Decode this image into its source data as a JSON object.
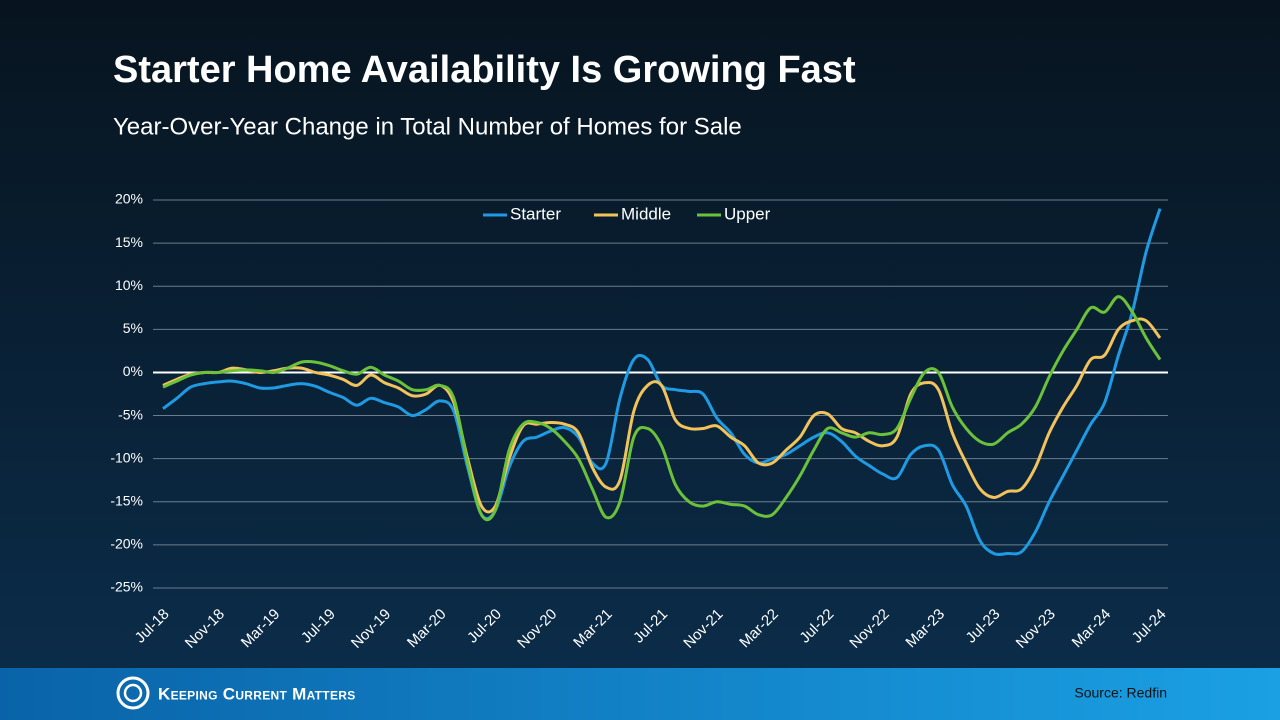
{
  "chart_data": {
    "type": "line",
    "title": "Starter Home Availability Is Growing Fast",
    "subtitle": "Year-Over-Year Change in Total Number of Homes for Sale",
    "categories": [
      "Jul-18",
      null,
      null,
      null,
      "Nov-18",
      null,
      null,
      null,
      "Mar-19",
      null,
      null,
      null,
      "Jul-19",
      null,
      null,
      null,
      "Nov-19",
      null,
      null,
      null,
      "Mar-20",
      null,
      null,
      null,
      "Jul-20",
      null,
      null,
      null,
      "Nov-20",
      null,
      null,
      null,
      "Mar-21",
      null,
      null,
      null,
      "Jul-21",
      null,
      null,
      null,
      "Nov-21",
      null,
      null,
      null,
      "Mar-22",
      null,
      null,
      null,
      "Jul-22",
      null,
      null,
      null,
      "Nov-22",
      null,
      null,
      null,
      "Mar-23",
      null,
      null,
      null,
      "Jul-23",
      null,
      null,
      null,
      "Nov-23",
      null,
      null,
      null,
      "Mar-24",
      null,
      null,
      null,
      "Jul-24"
    ],
    "series": [
      {
        "name": "Starter",
        "color": "#1f9be3",
        "values": [
          -4.2,
          -3,
          -1.7,
          -1.3,
          -1.1,
          -1.0,
          -1.3,
          -1.8,
          -1.8,
          -1.5,
          -1.3,
          -1.6,
          -2.3,
          -2.9,
          -3.8,
          -3.0,
          -3.5,
          -4.0,
          -5,
          -4.3,
          -3.3,
          -4.5,
          -11,
          -16.5,
          -16,
          -11,
          -8,
          -7.5,
          -6.8,
          -6.4,
          -7.5,
          -10.5,
          -10.5,
          -3,
          1.5,
          1.5,
          -1.5,
          -2.0,
          -2.2,
          -2.5,
          -5.3,
          -7,
          -9.5,
          -10.5,
          -10,
          -9.5,
          -8.5,
          -7.5,
          -7,
          -8,
          -9.7,
          -10.8,
          -11.8,
          -12.2,
          -9.5,
          -8.5,
          -9.0,
          -13,
          -15.5,
          -19.5,
          -21,
          -21,
          -20.8,
          -18.5,
          -15,
          -12,
          -9,
          -6,
          -3.5,
          2,
          7,
          14,
          19
        ]
      },
      {
        "name": "Middle",
        "color": "#f2c35b",
        "values": [
          -1.5,
          -0.8,
          -0.2,
          0,
          0,
          0.5,
          0.3,
          0,
          0.2,
          0.5,
          0.5,
          0,
          -0.3,
          -0.8,
          -1.5,
          -0.3,
          -1.2,
          -1.8,
          -2.7,
          -2.5,
          -1.5,
          -3.5,
          -10,
          -15.5,
          -15.5,
          -10,
          -6.2,
          -6,
          -5.8,
          -6,
          -7,
          -11,
          -13.3,
          -12.5,
          -4.5,
          -1.5,
          -1.5,
          -5.5,
          -6.5,
          -6.5,
          -6.2,
          -7.5,
          -8.5,
          -10.5,
          -10.5,
          -9,
          -7.5,
          -5,
          -4.8,
          -6.5,
          -7,
          -8,
          -8.5,
          -7.5,
          -2.5,
          -1.2,
          -2,
          -7,
          -10.5,
          -13.5,
          -14.5,
          -13.8,
          -13.5,
          -11,
          -7,
          -4,
          -1.5,
          1.5,
          2,
          5,
          6,
          6,
          4
        ]
      },
      {
        "name": "Upper",
        "color": "#6cc13a",
        "values": [
          -1.7,
          -1,
          -0.3,
          0,
          0,
          0.2,
          0.3,
          0.2,
          0,
          0.5,
          1.2,
          1.2,
          0.8,
          0.2,
          -0.2,
          0.6,
          -0.3,
          -1,
          -2,
          -2,
          -1.5,
          -3,
          -10.5,
          -16.5,
          -16,
          -9,
          -6,
          -5.8,
          -6.5,
          -8,
          -10,
          -13.5,
          -16.8,
          -15,
          -7.5,
          -6.5,
          -8.5,
          -13,
          -15,
          -15.5,
          -15,
          -15.3,
          -15.5,
          -16.5,
          -16.5,
          -14.5,
          -12,
          -9,
          -6.5,
          -7,
          -7.5,
          -7,
          -7.2,
          -6.5,
          -3,
          0,
          0,
          -4,
          -6.5,
          -8,
          -8.3,
          -7,
          -6,
          -4,
          -0.5,
          2.5,
          5,
          7.5,
          7,
          8.8,
          7,
          4,
          1.5
        ]
      }
    ],
    "ylim": [
      -25,
      20
    ],
    "yticks": [
      {
        "value": -25,
        "label": "-25%"
      },
      {
        "value": -20,
        "label": "-20%"
      },
      {
        "value": -15,
        "label": "-15%"
      },
      {
        "value": -10,
        "label": "-10%"
      },
      {
        "value": -5,
        "label": "-5%"
      },
      {
        "value": 0,
        "label": "0%"
      },
      {
        "value": 5,
        "label": "5%"
      },
      {
        "value": 10,
        "label": "10%"
      },
      {
        "value": 15,
        "label": "15%"
      },
      {
        "value": 20,
        "label": "20%"
      }
    ],
    "grid": true,
    "legend": "top"
  },
  "footer": {
    "brand": "Keeping Current Matters",
    "source": "Source: Redfin"
  }
}
